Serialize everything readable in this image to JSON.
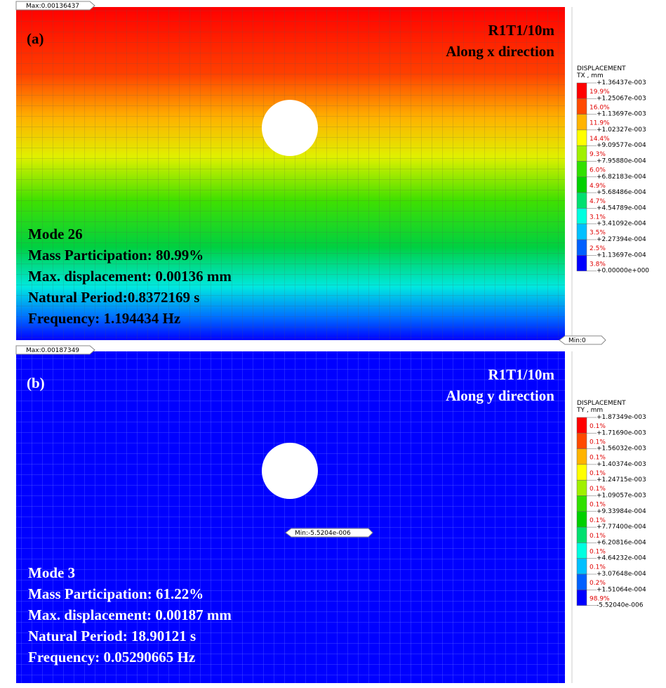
{
  "panels": [
    {
      "label": "(a)",
      "max_tag": "Max:0.00136437",
      "min_tag": "Min:0",
      "title": [
        "R1T1/10m",
        "Along x direction"
      ],
      "info": [
        "Mode 26",
        "Mass Participation: 80.99%",
        "Max. displacement: 0.00136 mm",
        "Natural Period:0.8372169 s",
        "Frequency: 1.194434 Hz"
      ],
      "legend": {
        "title": "DISPLACEMENT",
        "unit": "TX , mm",
        "values": [
          "+1.36437e-003",
          "+1.25067e-003",
          "+1.13697e-003",
          "+1.02327e-003",
          "+9.09577e-004",
          "+7.95880e-004",
          "+6.82183e-004",
          "+5.68486e-004",
          "+4.54789e-004",
          "+3.41092e-004",
          "+2.27394e-004",
          "+1.13697e-004",
          "+0.00000e+000"
        ],
        "percents": [
          "19.9%",
          "16.0%",
          "11.9%",
          "14.4%",
          "9.3%",
          "6.0%",
          "4.9%",
          "4.7%",
          "3.1%",
          "3.5%",
          "2.5%",
          "3.8%"
        ]
      }
    },
    {
      "label": "(b)",
      "max_tag": "Max:0.00187349",
      "min_tag": "Min:-5.5204e-006",
      "title": [
        "R1T1/10m",
        "Along y direction"
      ],
      "info": [
        "Mode 3",
        "Mass Participation: 61.22%",
        "Max. displacement: 0.00187 mm",
        "Natural Period: 18.90121 s",
        "Frequency: 0.05290665 Hz"
      ],
      "legend": {
        "title": "DISPLACEMENT",
        "unit": "TY , mm",
        "values": [
          "+1.87349e-003",
          "+1.71690e-003",
          "+1.56032e-003",
          "+1.40374e-003",
          "+1.24715e-003",
          "+1.09057e-003",
          "+9.33984e-004",
          "+7.77400e-004",
          "+6.20816e-004",
          "+4.64232e-004",
          "+3.07648e-004",
          "+1.51064e-004",
          "-5.52040e-006"
        ],
        "percents": [
          "0.1%",
          "0.1%",
          "0.1%",
          "0.1%",
          "0.1%",
          "0.1%",
          "0.1%",
          "0.1%",
          "0.1%",
          "0.1%",
          "0.2%",
          "98.9%"
        ]
      }
    }
  ],
  "legend_colors": [
    "#ff0000",
    "#ff4a00",
    "#ffb400",
    "#ffff00",
    "#a0f000",
    "#30e000",
    "#00d000",
    "#00e070",
    "#00ffe0",
    "#00c0ff",
    "#0060ff",
    "#0000ff"
  ]
}
